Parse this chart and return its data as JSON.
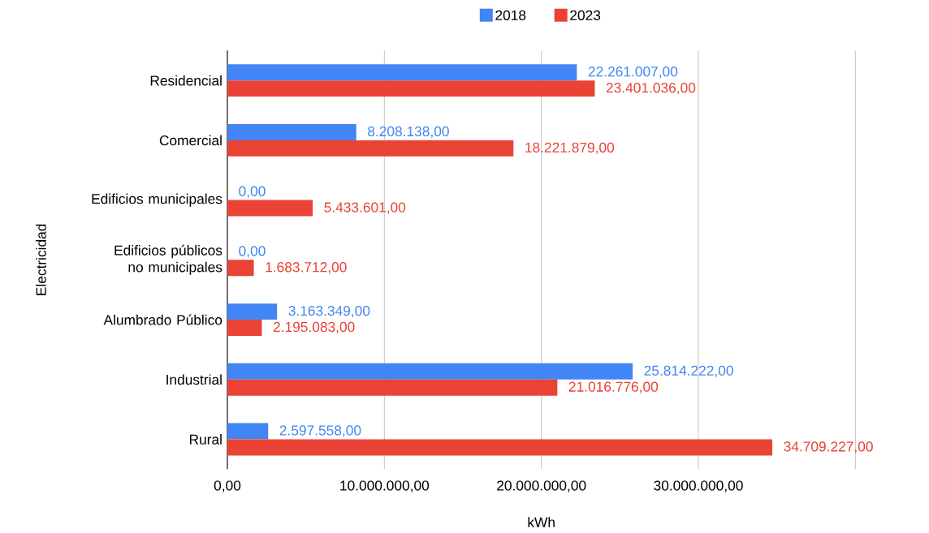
{
  "chart_data": {
    "type": "bar",
    "orientation": "horizontal",
    "categories": [
      "Residencial",
      "Comercial",
      "Edificios municipales",
      "Edificios públicos no municipales",
      "Alumbrado Público",
      "Industrial",
      "Rural"
    ],
    "series": [
      {
        "name": "2018",
        "color": "#4285f4",
        "values": [
          22261007,
          8208138,
          0,
          0,
          3163349,
          25814222,
          2597558
        ],
        "value_labels": [
          "22.261.007,00",
          "8.208.138,00",
          "0,00",
          "0,00",
          "3.163.349,00",
          "25.814.222,00",
          "2.597.558,00"
        ]
      },
      {
        "name": "2023",
        "color": "#ea4335",
        "values": [
          23401036,
          18221879,
          5433601,
          1683712,
          2195083,
          21016776,
          34709227
        ],
        "value_labels": [
          "23.401.036,00",
          "18.221.879,00",
          "5.433.601,00",
          "1.683.712,00",
          "2.195.083,00",
          "21.016.776,00",
          "34.709.227,00"
        ]
      }
    ],
    "xlabel": "kWh",
    "ylabel": "Electricidad",
    "xlim": [
      0,
      40000000
    ],
    "xticks": [
      {
        "value": 0,
        "label": "0,00"
      },
      {
        "value": 10000000,
        "label": "10.000.000,00"
      },
      {
        "value": 20000000,
        "label": "20.000.000,00"
      },
      {
        "value": 30000000,
        "label": "30.000.000,00"
      },
      {
        "value": 40000000,
        "label": null
      }
    ],
    "grid": "x",
    "legend": "top"
  }
}
